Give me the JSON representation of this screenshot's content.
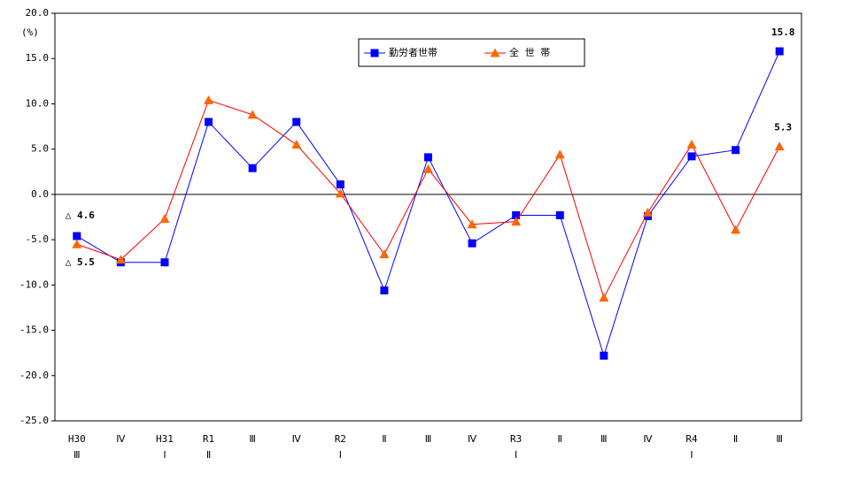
{
  "chart_data": {
    "type": "line",
    "y_axis_label": "(%)",
    "categories": [
      [
        "H30",
        "Ⅲ"
      ],
      [
        "Ⅳ"
      ],
      [
        "H31",
        "Ⅰ"
      ],
      [
        "R1",
        "Ⅱ"
      ],
      [
        "Ⅲ"
      ],
      [
        "Ⅳ"
      ],
      [
        "R2",
        "Ⅰ"
      ],
      [
        "Ⅱ"
      ],
      [
        "Ⅲ"
      ],
      [
        "Ⅳ"
      ],
      [
        "R3",
        "Ⅰ"
      ],
      [
        "Ⅱ"
      ],
      [
        "Ⅲ"
      ],
      [
        "Ⅳ"
      ],
      [
        "R4",
        "Ⅰ"
      ],
      [
        "Ⅱ"
      ],
      [
        "Ⅲ"
      ]
    ],
    "series": [
      {
        "name": "勤労者世帯",
        "color": "#0000ff",
        "marker_color": "#0000ff",
        "marker": "square",
        "values": [
          -4.6,
          -7.5,
          -7.5,
          8.0,
          2.9,
          8.0,
          1.1,
          -10.6,
          4.1,
          -5.4,
          -2.3,
          -2.3,
          -17.8,
          -2.4,
          4.2,
          4.9,
          15.8
        ],
        "value_labels": [
          "△ 4.6",
          null,
          null,
          null,
          null,
          null,
          null,
          null,
          null,
          null,
          null,
          null,
          null,
          null,
          null,
          null,
          "15.8"
        ],
        "label_color": "#0070c0"
      },
      {
        "name": "全 世 帯",
        "color": "#ff0000",
        "marker_color": "#ff6600",
        "marker": "triangle",
        "values": [
          -5.5,
          -7.2,
          -2.7,
          10.4,
          8.8,
          5.5,
          0.1,
          -6.6,
          2.8,
          -3.3,
          -3.0,
          4.4,
          -11.4,
          -2.0,
          5.5,
          -3.9,
          5.3
        ],
        "value_labels": [
          "△ 5.5",
          null,
          null,
          null,
          null,
          null,
          null,
          null,
          null,
          null,
          null,
          null,
          null,
          null,
          null,
          null,
          "5.3"
        ],
        "label_color": "#c00000"
      }
    ],
    "ylim": [
      -25,
      20
    ],
    "yticks": [
      {
        "value": -25,
        "label": "-25.0"
      },
      {
        "value": -20,
        "label": "-20.0"
      },
      {
        "value": -15,
        "label": "-15.0"
      },
      {
        "value": -10,
        "label": "-10.0"
      },
      {
        "value": -5,
        "label": "-5.0"
      },
      {
        "value": 0,
        "label": "0.0"
      },
      {
        "value": 5,
        "label": "5.0"
      },
      {
        "value": 10,
        "label": "10.0"
      },
      {
        "value": 15,
        "label": "15.0"
      },
      {
        "value": 20,
        "label": "20.0"
      }
    ],
    "zero_line": true,
    "legend": "top-center"
  }
}
